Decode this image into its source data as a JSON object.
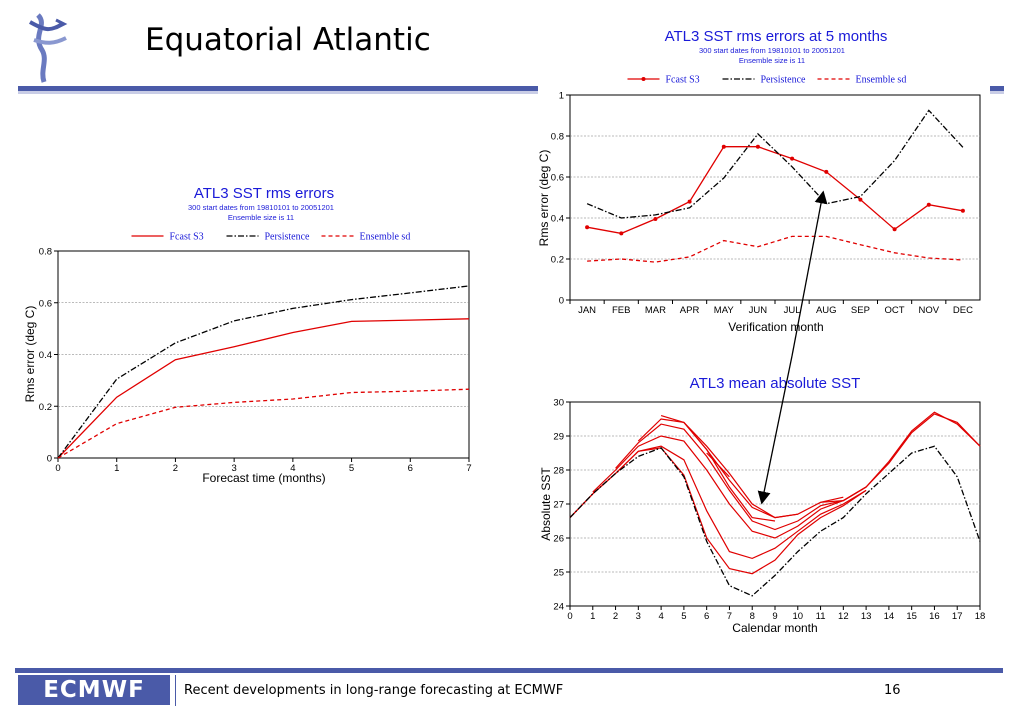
{
  "slide": {
    "title": "Equatorial Atlantic",
    "footer_text": "Recent developments in long-range forecasting at ECMWF",
    "page_number": "16",
    "logo_text": "ECMWF",
    "accent_color": "#4a5aa8"
  },
  "chart_data": [
    {
      "type": "line",
      "title": "ATL3 SST rms errors",
      "subtitle": [
        "300 start dates from 19810101 to 20051201",
        "Ensemble size is 11"
      ],
      "xlabel": "Forecast time (months)",
      "ylabel": "Rms error (deg C)",
      "xlim": [
        0,
        7
      ],
      "ylim": [
        0,
        0.8
      ],
      "xticks": [
        "0",
        "1",
        "2",
        "3",
        "4",
        "5",
        "6",
        "7"
      ],
      "yticks": [
        "0",
        "0.2",
        "0.4",
        "0.6",
        "0.8"
      ],
      "grid": "horizontal dashed",
      "legend": "top",
      "x": [
        0,
        1,
        2,
        3,
        4,
        5,
        6,
        7
      ],
      "series": [
        {
          "name": "Fcast S3",
          "color": "#e00000",
          "style": "solid",
          "values": [
            0,
            0.235,
            0.38,
            0.43,
            0.485,
            0.528,
            0.533,
            0.538
          ]
        },
        {
          "name": "Persistence",
          "color": "#000000",
          "style": "dashdot",
          "values": [
            0,
            0.305,
            0.445,
            0.53,
            0.578,
            0.612,
            0.638,
            0.665
          ]
        },
        {
          "name": "Ensemble sd",
          "color": "#e00000",
          "style": "dashed",
          "values": [
            0,
            0.133,
            0.196,
            0.215,
            0.228,
            0.253,
            0.258,
            0.266
          ]
        }
      ]
    },
    {
      "type": "line",
      "title": "ATL3 SST rms errors at 5 months",
      "subtitle": [
        "300 start dates from 19810101 to 20051201",
        "Ensemble size is 11"
      ],
      "xlabel": "Verification month",
      "ylabel": "Rms error (deg C)",
      "ylim": [
        0,
        1
      ],
      "yticks": [
        "0",
        "0.2",
        "0.4",
        "0.6",
        "0.8",
        "1"
      ],
      "grid": "horizontal dashed",
      "legend": "top",
      "categories": [
        "JAN",
        "FEB",
        "MAR",
        "APR",
        "MAY",
        "JUN",
        "JUL",
        "AUG",
        "SEP",
        "OCT",
        "NOV",
        "DEC"
      ],
      "series": [
        {
          "name": "Fcast S3",
          "color": "#e00000",
          "style": "solid-markers",
          "values": [
            0.355,
            0.325,
            0.395,
            0.48,
            0.748,
            0.748,
            0.69,
            0.625,
            0.49,
            0.345,
            0.465,
            0.435
          ]
        },
        {
          "name": "Persistence",
          "color": "#000000",
          "style": "dashdot",
          "values": [
            0.47,
            0.4,
            0.415,
            0.45,
            0.595,
            0.81,
            0.65,
            0.47,
            0.505,
            0.68,
            0.925,
            0.745
          ]
        },
        {
          "name": "Ensemble sd",
          "color": "#e00000",
          "style": "dashed",
          "values": [
            0.19,
            0.2,
            0.185,
            0.21,
            0.29,
            0.26,
            0.31,
            0.31,
            0.27,
            0.23,
            0.205,
            0.195
          ]
        }
      ]
    },
    {
      "type": "line",
      "title": "ATL3 mean absolute SST",
      "xlabel": "Calendar month",
      "ylabel": "Absolute SST",
      "xlim": [
        0,
        18
      ],
      "ylim": [
        24,
        30
      ],
      "xticks": [
        "0",
        "1",
        "2",
        "3",
        "4",
        "5",
        "6",
        "7",
        "8",
        "9",
        "10",
        "11",
        "12",
        "13",
        "14",
        "15",
        "16",
        "17",
        "18"
      ],
      "yticks": [
        "24",
        "25",
        "26",
        "27",
        "28",
        "29",
        "30"
      ],
      "grid": "horizontal dashed",
      "forecast_color": "#e00000",
      "observed": {
        "color": "#000000",
        "style": "dashdot",
        "x": [
          0,
          1,
          2,
          3,
          4,
          5,
          6,
          7,
          8,
          9,
          10,
          11,
          12,
          13,
          14,
          15,
          16,
          17,
          18
        ],
        "values": [
          26.6,
          27.3,
          27.9,
          28.4,
          28.65,
          27.8,
          25.9,
          24.6,
          24.3,
          24.9,
          25.6,
          26.2,
          26.6,
          27.3,
          27.9,
          28.5,
          28.7,
          27.8,
          25.9
        ]
      },
      "forecasts": [
        {
          "x": [
            0,
            1,
            2,
            3,
            4,
            5,
            6,
            7,
            8,
            9,
            10,
            11,
            12,
            13
          ],
          "values": [
            26.6,
            27.3,
            27.9,
            28.55,
            28.65,
            27.85,
            26.0,
            25.1,
            24.95,
            25.35,
            26.1,
            26.6,
            26.95,
            27.4
          ]
        },
        {
          "x": [
            0,
            1,
            2,
            3,
            4,
            5,
            6,
            7,
            8,
            9,
            10,
            11,
            12,
            13
          ],
          "values": [
            26.6,
            27.3,
            27.9,
            28.55,
            28.7,
            28.3,
            26.8,
            25.6,
            25.4,
            25.7,
            26.2,
            26.7,
            27.0,
            27.4
          ]
        },
        {
          "x": [
            1,
            2,
            3,
            4,
            5,
            6,
            7,
            8,
            9,
            10,
            11,
            12,
            13
          ],
          "values": [
            27.35,
            28.0,
            28.7,
            29.0,
            28.85,
            28.0,
            27.0,
            26.2,
            26.0,
            26.35,
            26.85,
            27.1,
            27.5
          ]
        },
        {
          "x": [
            2,
            3,
            4,
            5,
            6,
            7,
            8,
            9,
            10,
            11,
            12,
            13
          ],
          "values": [
            28.05,
            28.8,
            29.35,
            29.2,
            28.4,
            27.4,
            26.5,
            26.25,
            26.5,
            26.95,
            27.1,
            27.5
          ]
        },
        {
          "x": [
            3,
            4,
            5,
            6,
            7,
            8,
            9,
            10,
            11,
            12
          ],
          "values": [
            28.85,
            29.5,
            29.4,
            28.6,
            27.7,
            26.9,
            26.6,
            26.7,
            27.05,
            27.2
          ]
        },
        {
          "x": [
            4,
            5,
            6,
            7,
            8,
            9,
            10
          ],
          "values": [
            29.6,
            29.4,
            28.7,
            27.9,
            27.0,
            26.6,
            26.7
          ]
        },
        {
          "x": [
            5,
            6,
            7,
            8,
            9
          ],
          "values": [
            29.4,
            28.6,
            27.5,
            26.6,
            26.5
          ]
        },
        {
          "x": [
            6,
            7
          ],
          "values": [
            28.5,
            27.8
          ]
        },
        {
          "x": [
            11,
            12,
            13,
            14,
            15,
            16,
            17,
            18
          ],
          "values": [
            27.05,
            27.1,
            27.5,
            28.2,
            29.1,
            29.65,
            29.4,
            28.7
          ]
        },
        {
          "x": [
            12,
            13,
            14,
            15,
            16,
            17,
            18
          ],
          "values": [
            27.1,
            27.5,
            28.25,
            29.15,
            29.7,
            29.35,
            28.7
          ]
        }
      ]
    }
  ]
}
